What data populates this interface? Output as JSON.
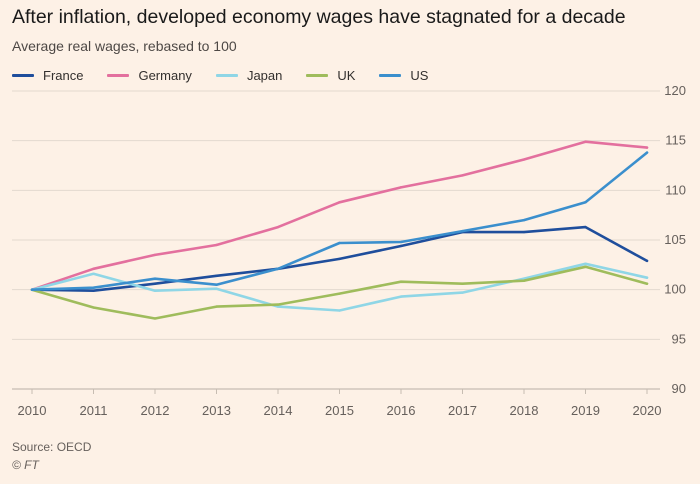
{
  "header": {
    "title": "After inflation, developed economy wages have stagnated for a decade",
    "subtitle": "Average real wages, rebased to 100"
  },
  "footer": {
    "source": "Source: OECD",
    "credit": "© FT"
  },
  "colors": {
    "background": "#fdf1e6",
    "gridline": "#e3d9cf",
    "baseline": "#c7bdb2",
    "tick_text": "#66605c"
  },
  "chart_data": {
    "type": "line",
    "title": "After inflation, developed economy wages have stagnated for a decade",
    "subtitle": "Average real wages, rebased to 100",
    "xlabel": "",
    "ylabel": "",
    "x": [
      2010,
      2011,
      2012,
      2013,
      2014,
      2015,
      2016,
      2017,
      2018,
      2019,
      2020
    ],
    "x_tick_labels": [
      "2010",
      "2011",
      "2012",
      "2013",
      "2014",
      "2015",
      "2016",
      "2017",
      "2018",
      "2019",
      "2020"
    ],
    "ylim": [
      90,
      120
    ],
    "y_ticks": [
      90,
      95,
      100,
      105,
      110,
      115,
      120
    ],
    "y_axis_side": "right",
    "grid": "horizontal",
    "legend_position": "top-left",
    "series": [
      {
        "name": "France",
        "color": "#1f4e9c",
        "values": [
          100,
          99.9,
          100.6,
          101.4,
          102.1,
          103.1,
          104.4,
          105.8,
          105.8,
          106.3,
          102.9
        ]
      },
      {
        "name": "Germany",
        "color": "#e3709e",
        "values": [
          100,
          102.1,
          103.5,
          104.5,
          106.3,
          108.8,
          110.3,
          111.5,
          113.1,
          114.9,
          114.3
        ]
      },
      {
        "name": "Japan",
        "color": "#8fd6e6",
        "values": [
          100,
          101.6,
          99.9,
          100.1,
          98.3,
          97.9,
          99.3,
          99.7,
          101.1,
          102.6,
          101.2
        ]
      },
      {
        "name": "UK",
        "color": "#9fbc5c",
        "values": [
          100,
          98.2,
          97.1,
          98.3,
          98.5,
          99.6,
          100.8,
          100.6,
          100.9,
          102.3,
          100.6
        ]
      },
      {
        "name": "US",
        "color": "#3b8fcd",
        "values": [
          100,
          100.2,
          101.1,
          100.5,
          102.1,
          104.7,
          104.8,
          105.9,
          107.0,
          108.8,
          113.8
        ]
      }
    ]
  }
}
